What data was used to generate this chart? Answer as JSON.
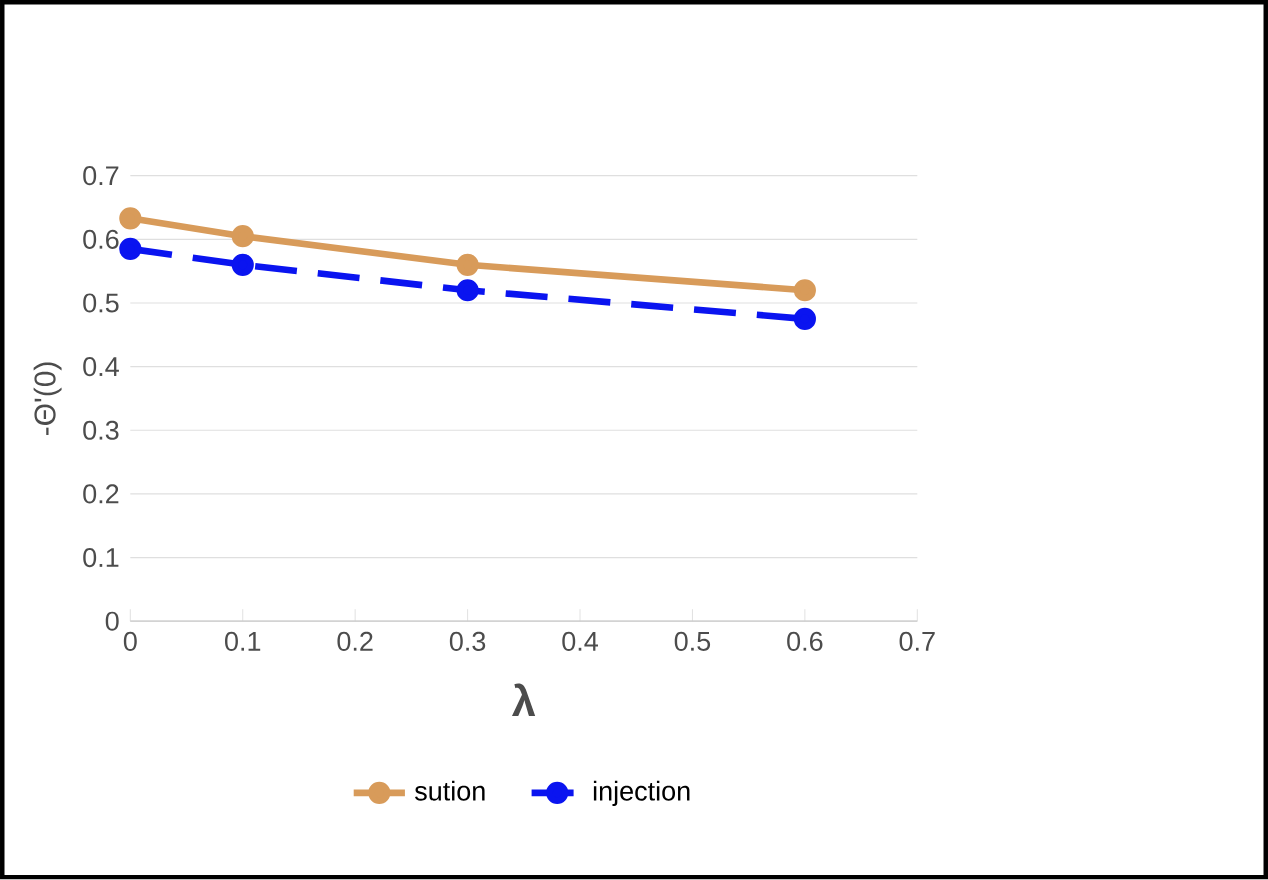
{
  "chart_data": {
    "type": "line",
    "xlabel": "λ",
    "ylabel": "-Θ'(0)",
    "x": [
      0,
      0.1,
      0.3,
      0.6
    ],
    "series": [
      {
        "name": "sution",
        "color": "#d89b5a",
        "values": [
          0.633,
          0.605,
          0.56,
          0.52
        ],
        "line_style": "solid"
      },
      {
        "name": "injection",
        "color": "#0a14f0",
        "values": [
          0.585,
          0.56,
          0.52,
          0.475
        ],
        "line_style": "dashed"
      }
    ],
    "xlim": [
      0,
      0.7
    ],
    "xticks": [
      0,
      0.1,
      0.2,
      0.3,
      0.4,
      0.5,
      0.6,
      0.7
    ],
    "ylim": [
      0,
      0.7
    ],
    "yticks": [
      0,
      0.1,
      0.2,
      0.3,
      0.4,
      0.5,
      0.6,
      0.7
    ],
    "grid": "y",
    "legend": "bottom",
    "marker": "circle"
  }
}
